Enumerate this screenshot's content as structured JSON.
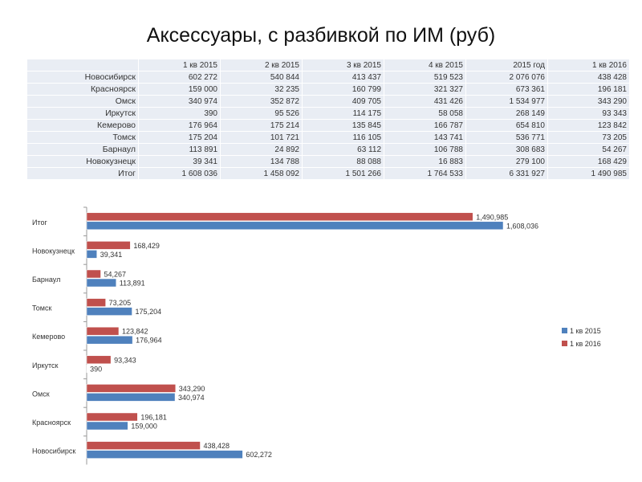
{
  "title": "Аксессуары, с разбивкой по ИМ (руб)",
  "table": {
    "headers": [
      "",
      "1 кв 2015",
      "2 кв 2015",
      "3 кв 2015",
      "4 кв 2015",
      "2015 год",
      "1 кв 2016"
    ],
    "rows": [
      [
        "Новосибирск",
        "602 272",
        "540 844",
        "413 437",
        "519 523",
        "2 076 076",
        "438 428"
      ],
      [
        "Красноярск",
        "159 000",
        "32 235",
        "160 799",
        "321 327",
        "673 361",
        "196 181"
      ],
      [
        "Омск",
        "340 974",
        "352 872",
        "409 705",
        "431 426",
        "1 534 977",
        "343 290"
      ],
      [
        "Иркутск",
        "390",
        "95 526",
        "114 175",
        "58 058",
        "268 149",
        "93 343"
      ],
      [
        "Кемерово",
        "176 964",
        "175 214",
        "135 845",
        "166 787",
        "654 810",
        "123 842"
      ],
      [
        "Томск",
        "175 204",
        "101 721",
        "116 105",
        "143 741",
        "536 771",
        "73 205"
      ],
      [
        "Барнаул",
        "113 891",
        "24 892",
        "63 112",
        "106 788",
        "308 683",
        "54 267"
      ],
      [
        "Новокузнецк",
        "39 341",
        "134 788",
        "88 088",
        "16 883",
        "279 100",
        "168 429"
      ],
      [
        "Итог",
        "1 608 036",
        "1 458 092",
        "1 501 266",
        "1 764 533",
        "6 331 927",
        "1 490 985"
      ]
    ]
  },
  "chart_data": {
    "type": "bar",
    "orientation": "horizontal",
    "categories": [
      "Итог",
      "Новокузнецк",
      "Барнаул",
      "Томск",
      "Кемерово",
      "Иркутск",
      "Омск",
      "Красноярск",
      "Новосибирск"
    ],
    "series": [
      {
        "name": "1 кв 2016",
        "color": "#c0504d",
        "values": [
          1490985,
          168429,
          54267,
          73205,
          123842,
          93343,
          343290,
          196181,
          438428
        ]
      },
      {
        "name": "1 кв 2015",
        "color": "#4f81bd",
        "values": [
          1608036,
          39341,
          113891,
          175204,
          176964,
          390,
          340974,
          159000,
          602272
        ]
      }
    ],
    "xlim": [
      0,
      1608036
    ],
    "legend": "right",
    "grid": false
  }
}
